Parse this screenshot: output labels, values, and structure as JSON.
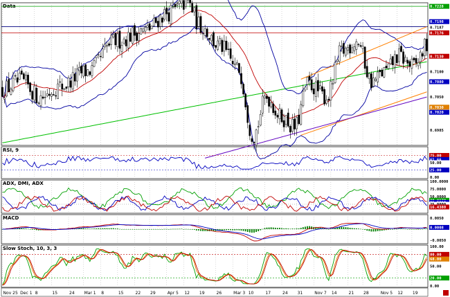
{
  "chart_data": {
    "type": "line",
    "panels": [
      {
        "id": "price",
        "title": "Data",
        "yrange": [
          0.6955,
          0.7235
        ],
        "y_labels": [
          {
            "v": 0.7228,
            "text": "0.7228",
            "color": "#00a000"
          },
          {
            "v": 0.7198,
            "text": "0.7198",
            "color": "#0000c0"
          },
          {
            "v": 0.7187,
            "text": "0.7187",
            "color": "#000000"
          },
          {
            "v": 0.7176,
            "text": "0.7176",
            "color": "#c00000"
          },
          {
            "v": 0.713,
            "text": "0.7130",
            "color": "#c00000"
          },
          {
            "v": 0.71,
            "text": "0.7100",
            "color": "#000000"
          },
          {
            "v": 0.708,
            "text": "0.7080",
            "color": "#0000c0"
          },
          {
            "v": 0.705,
            "text": "0.7050",
            "color": "#000000"
          },
          {
            "v": 0.703,
            "text": "0.7030",
            "color": "#e08000"
          },
          {
            "v": 0.702,
            "text": "0.7020",
            "color": "#0000c0"
          },
          {
            "v": 0.6985,
            "text": "0.6985",
            "color": "#000000"
          }
        ],
        "hlines": [
          {
            "v": 0.7228,
            "color": "#00a000"
          },
          {
            "v": 0.7188,
            "color": "#000080"
          },
          {
            "v": 0.7176,
            "color": "#c00000"
          }
        ]
      },
      {
        "id": "rsi",
        "title": "RSI, 9",
        "yrange": [
          0,
          100
        ],
        "y_labels": [
          {
            "v": 75,
            "text": "75.00",
            "color": "#c00000"
          },
          {
            "v": 61,
            "text": "61.66",
            "color": "#0000c0"
          },
          {
            "v": 50,
            "text": "50.00",
            "color": "#000000"
          },
          {
            "v": 25,
            "text": "25.00",
            "color": "#0000c0"
          },
          {
            "v": 0,
            "text": "0.00",
            "color": "#000000"
          }
        ]
      },
      {
        "id": "adx",
        "title": "ADX, DMI, ADX",
        "yrange": [
          0,
          100
        ],
        "y_labels": [
          {
            "v": 100,
            "text": "100.0000",
            "color": "#000000"
          },
          {
            "v": 75,
            "text": "75.0000",
            "color": "#000000"
          },
          {
            "v": 50,
            "text": "50.0000",
            "color": "#000000"
          },
          {
            "v": 38,
            "text": "38.8170",
            "color": "#00a000"
          },
          {
            "v": 31,
            "text": "31.5310",
            "color": "#0000c0"
          },
          {
            "v": 25,
            "text": "25.0000",
            "color": "#000000"
          },
          {
            "v": 16,
            "text": "16.4380",
            "color": "#c00000"
          }
        ]
      },
      {
        "id": "macd",
        "title": "MACD",
        "yrange": [
          -0.006,
          0.006
        ],
        "y_labels": [
          {
            "v": 0.005,
            "text": "0.0050",
            "color": "#000000"
          },
          {
            "v": 0.0008,
            "text": "0.0008",
            "color": "#0000c0"
          },
          {
            "v": -0.005,
            "text": "-0.0050",
            "color": "#000000"
          }
        ]
      },
      {
        "id": "stoch",
        "title": "Slow Stoch, 10, 3, 3",
        "yrange": [
          0,
          100
        ],
        "y_labels": [
          {
            "v": 100,
            "text": "100.00",
            "color": "#000000"
          },
          {
            "v": 80,
            "text": "80.00",
            "color": "#c00000"
          },
          {
            "v": 68,
            "text": "68.00",
            "color": "#e08000"
          },
          {
            "v": 50,
            "text": "50.00",
            "color": "#000000"
          },
          {
            "v": 20,
            "text": "20.00",
            "color": "#00a000"
          },
          {
            "v": 0,
            "text": "0.00",
            "color": "#000000"
          }
        ]
      }
    ],
    "x_labels": [
      "Nov 25",
      "Dec 1",
      "8",
      "15",
      "24",
      "Mar 1",
      "8",
      "15",
      "22",
      "29",
      "Apr 5",
      "12",
      "19",
      "26",
      "Mar 3",
      "10",
      "17",
      "24",
      "31",
      "Nov 7",
      "14",
      "21",
      "28",
      "Nov 5",
      "12",
      "19"
    ],
    "colors": {
      "bollinger": "#0000a0",
      "sma_mid": "#c00000",
      "sma_long": "#00c000",
      "channel": "#ff8000",
      "trend": "#6000c0",
      "rsi": "#0000c0",
      "adx": "#00a000",
      "dmi_plus": "#0000c0",
      "dmi_minus": "#c00000",
      "macd": "#c00000",
      "signal": "#0000c0",
      "hist": "#008000",
      "stoch_k": "#00a000",
      "stoch_d": "#e08000",
      "stoch_s": "#c00000"
    }
  }
}
